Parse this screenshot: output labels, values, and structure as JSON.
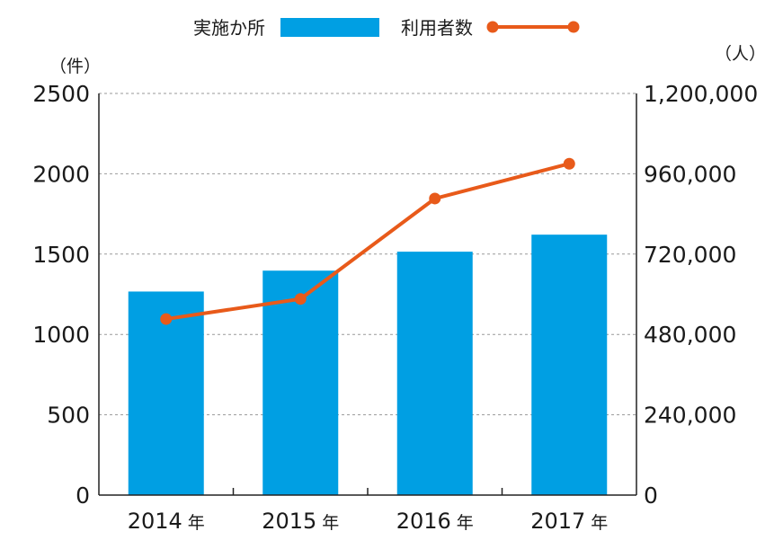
{
  "chart_data": {
    "type": "bar+line",
    "categories": [
      "2014",
      "2015",
      "2016",
      "2017"
    ],
    "category_suffix": "年",
    "series": [
      {
        "name": "実施か所",
        "type": "bar",
        "axis": "left",
        "color": "#009fe3",
        "values": [
          1267,
          1397,
          1515,
          1621
        ]
      },
      {
        "name": "利用者数",
        "type": "line",
        "axis": "right",
        "color": "#e85a1a",
        "values": [
          526000,
          586000,
          886000,
          990000
        ]
      }
    ],
    "left_axis": {
      "unit_label": "（件）",
      "ylim": [
        0,
        2500
      ],
      "ticks": [
        "0",
        "500",
        "1000",
        "1500",
        "2000",
        "2500"
      ]
    },
    "right_axis": {
      "unit_label": "（人）",
      "ylim": [
        0,
        1200000
      ],
      "ticks": [
        "0",
        "240,000",
        "480,000",
        "720,000",
        "960,000",
        "1,200,000"
      ]
    },
    "grid": true,
    "legend_position": "top-center"
  }
}
